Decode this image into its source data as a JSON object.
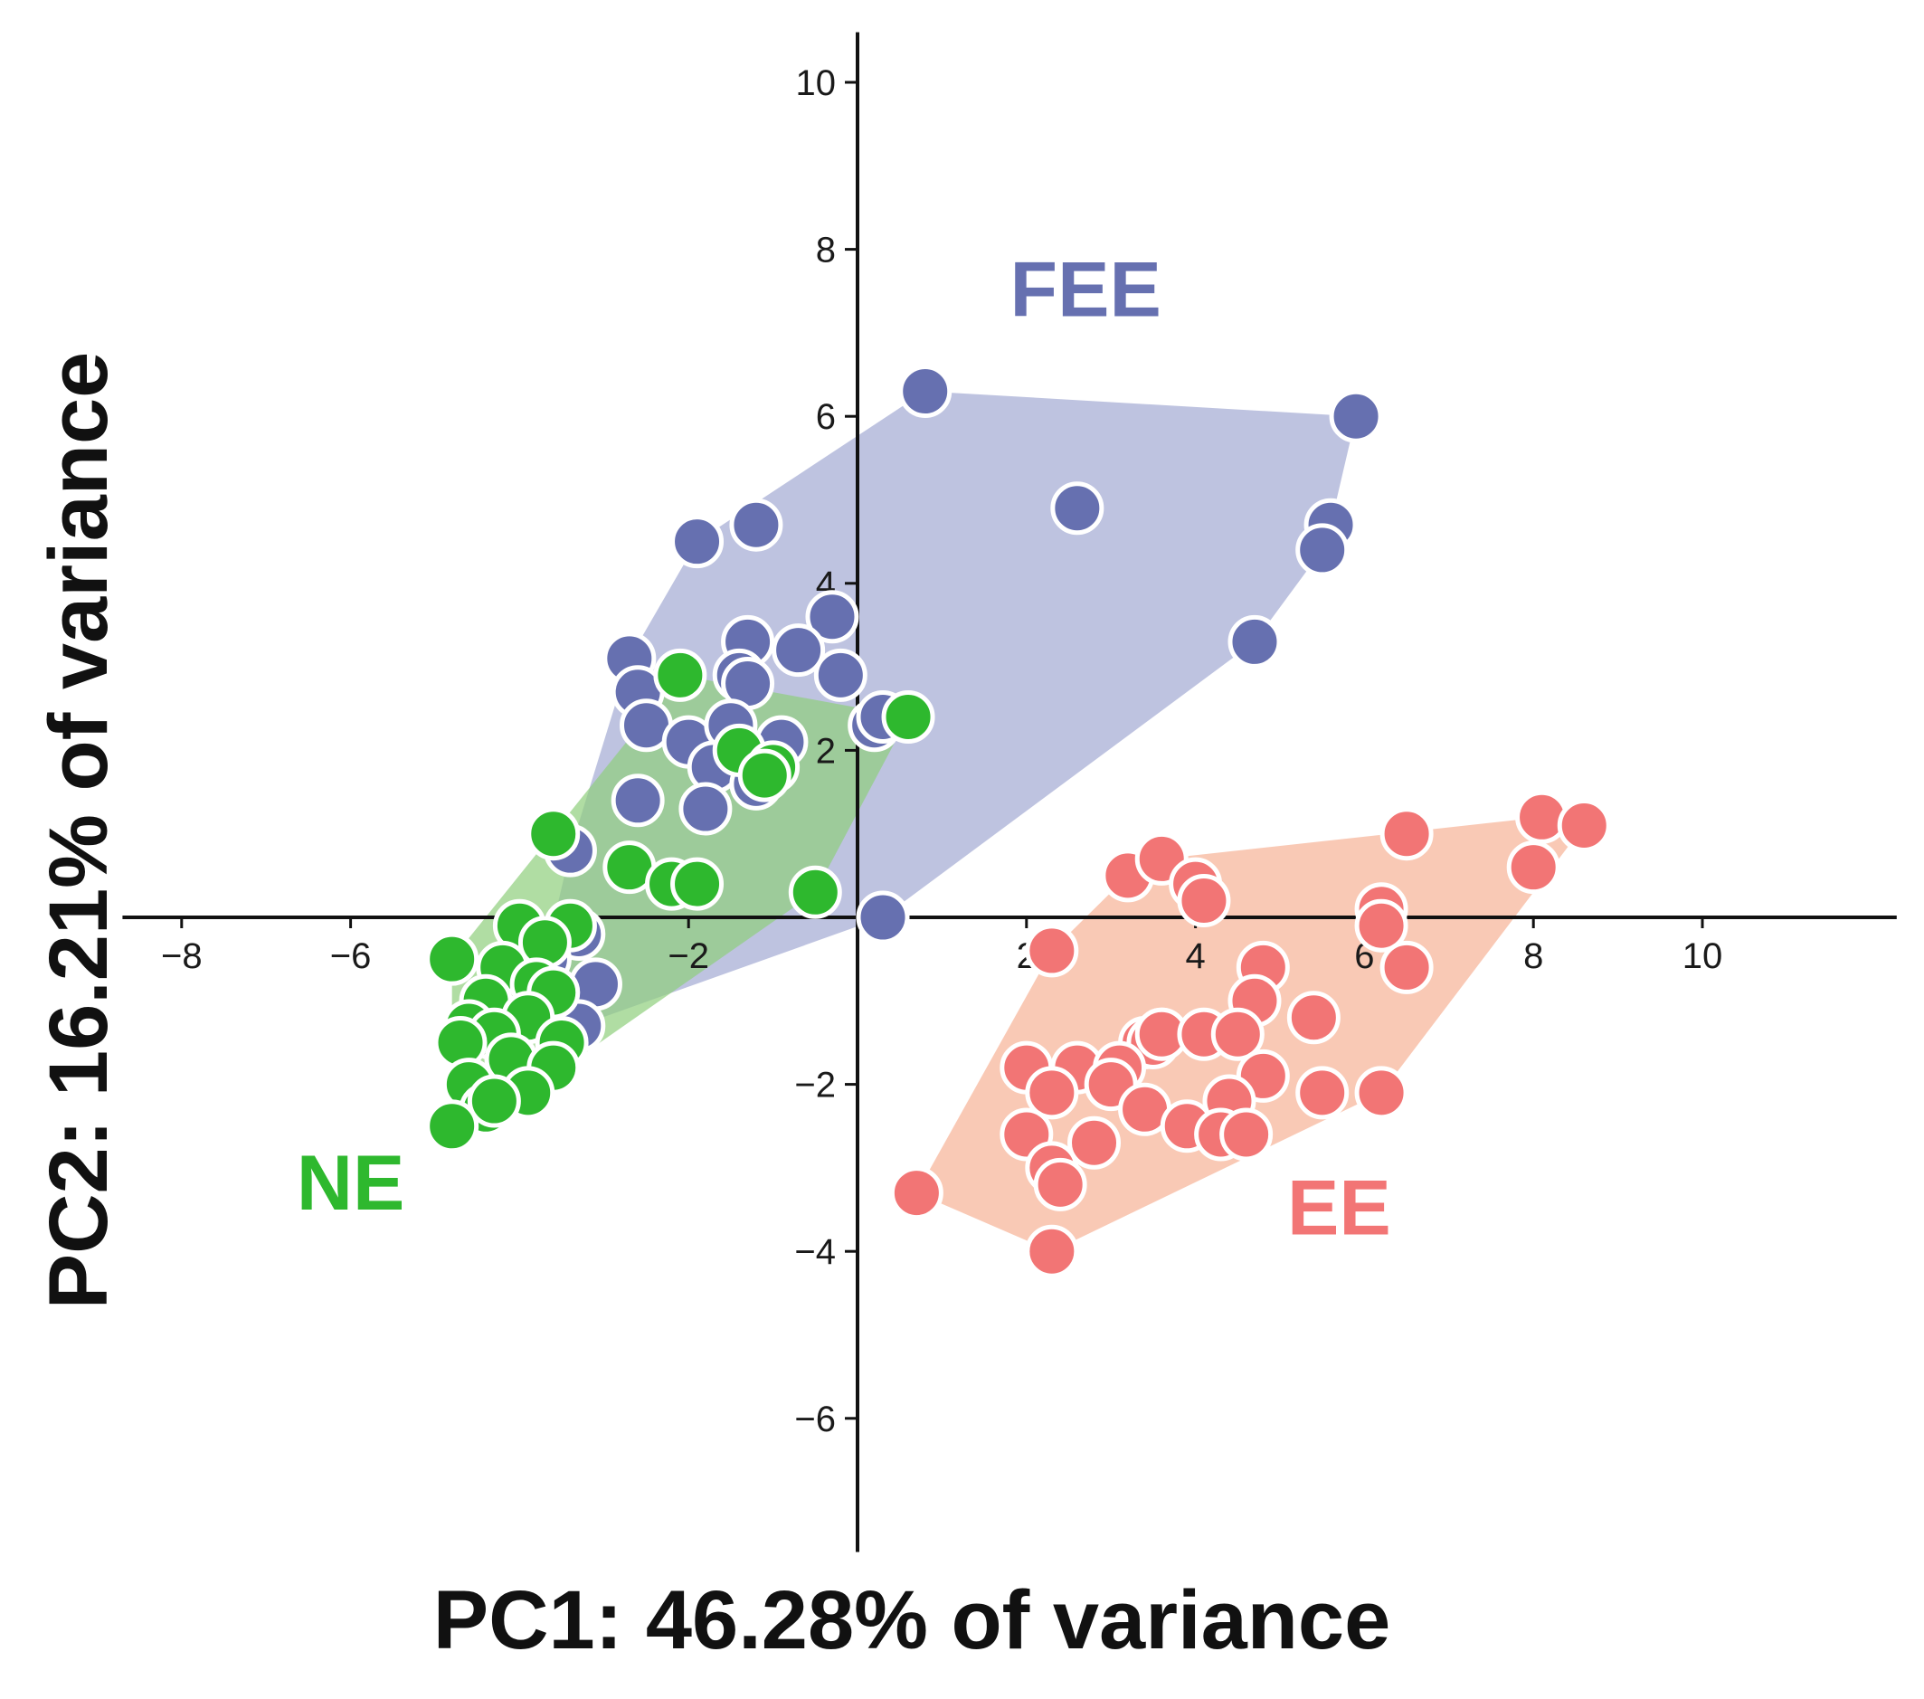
{
  "chart_data": {
    "type": "scatter",
    "title": "",
    "xlabel": "PC1: 46.28% of variance",
    "ylabel": "PC2: 16.21% of variance",
    "xlim": [
      -8.7,
      12.3
    ],
    "ylim": [
      -7.6,
      10.6
    ],
    "xticks": [
      -8,
      -6,
      -4,
      -2,
      2,
      4,
      6,
      8,
      10
    ],
    "yticks": [
      -6,
      -4,
      -2,
      2,
      4,
      6,
      8,
      10
    ],
    "grid": false,
    "legend": "none",
    "series": [
      {
        "name": "FEE",
        "color": "#6670b0",
        "hull_color": "#b3b8db",
        "label_at": [
          2.7,
          7.2
        ],
        "points": [
          [
            0.8,
            6.3
          ],
          [
            5.9,
            6.0
          ],
          [
            2.6,
            4.9
          ],
          [
            5.6,
            4.7
          ],
          [
            5.5,
            4.4
          ],
          [
            4.7,
            3.3
          ],
          [
            -1.9,
            4.5
          ],
          [
            -1.2,
            4.7
          ],
          [
            -0.3,
            3.6
          ],
          [
            -1.3,
            3.3
          ],
          [
            -0.7,
            3.2
          ],
          [
            -2.7,
            3.1
          ],
          [
            -2.6,
            2.7
          ],
          [
            -1.4,
            2.9
          ],
          [
            -1.3,
            2.8
          ],
          [
            -0.2,
            2.9
          ],
          [
            0.2,
            2.3
          ],
          [
            0.3,
            2.4
          ],
          [
            -2.5,
            2.3
          ],
          [
            -2.0,
            2.1
          ],
          [
            -1.5,
            2.3
          ],
          [
            -0.9,
            2.1
          ],
          [
            -1.7,
            1.8
          ],
          [
            -1.2,
            1.6
          ],
          [
            -2.6,
            1.4
          ],
          [
            -1.8,
            1.3
          ],
          [
            -3.4,
            0.8
          ],
          [
            -3.3,
            -0.2
          ],
          [
            -3.7,
            -0.5
          ],
          [
            -3.1,
            -0.8
          ],
          [
            -3.3,
            -1.3
          ],
          [
            0.3,
            0.0
          ]
        ]
      },
      {
        "name": "NE",
        "color": "#2eb82e",
        "hull_color": "#8fcf7c",
        "label_at": [
          -6.0,
          -3.5
        ],
        "points": [
          [
            -2.1,
            2.9
          ],
          [
            0.6,
            2.4
          ],
          [
            -1.4,
            2.0
          ],
          [
            -1.0,
            1.8
          ],
          [
            -1.1,
            1.7
          ],
          [
            -3.6,
            1.0
          ],
          [
            -2.7,
            0.6
          ],
          [
            -2.2,
            0.4
          ],
          [
            -1.9,
            0.4
          ],
          [
            -0.5,
            0.3
          ],
          [
            -4.0,
            -0.1
          ],
          [
            -3.4,
            -0.1
          ],
          [
            -3.7,
            -0.3
          ],
          [
            -4.8,
            -0.5
          ],
          [
            -4.2,
            -0.6
          ],
          [
            -3.8,
            -0.8
          ],
          [
            -3.6,
            -0.9
          ],
          [
            -4.4,
            -1.0
          ],
          [
            -3.9,
            -1.2
          ],
          [
            -4.6,
            -1.3
          ],
          [
            -4.3,
            -1.4
          ],
          [
            -3.5,
            -1.5
          ],
          [
            -4.7,
            -1.5
          ],
          [
            -4.1,
            -1.7
          ],
          [
            -3.6,
            -1.8
          ],
          [
            -4.6,
            -2.0
          ],
          [
            -3.9,
            -2.1
          ],
          [
            -4.4,
            -2.3
          ],
          [
            -4.8,
            -2.5
          ],
          [
            -4.3,
            -2.2
          ]
        ]
      },
      {
        "name": "EE",
        "color": "#f27575",
        "hull_color": "#f8bfa8",
        "label_at": [
          5.7,
          -3.8
        ],
        "points": [
          [
            8.1,
            1.2
          ],
          [
            8.6,
            1.1
          ],
          [
            6.5,
            1.0
          ],
          [
            8.0,
            0.6
          ],
          [
            3.2,
            0.5
          ],
          [
            3.6,
            0.7
          ],
          [
            4.0,
            0.4
          ],
          [
            4.1,
            0.2
          ],
          [
            6.2,
            0.1
          ],
          [
            6.2,
            -0.1
          ],
          [
            2.3,
            -0.4
          ],
          [
            6.5,
            -0.6
          ],
          [
            4.8,
            -0.6
          ],
          [
            4.7,
            -1.0
          ],
          [
            5.4,
            -1.2
          ],
          [
            3.6,
            -1.4
          ],
          [
            3.4,
            -1.5
          ],
          [
            3.5,
            -1.5
          ],
          [
            3.6,
            -1.4
          ],
          [
            4.1,
            -1.4
          ],
          [
            4.5,
            -1.4
          ],
          [
            2.0,
            -1.8
          ],
          [
            2.6,
            -1.8
          ],
          [
            3.1,
            -1.8
          ],
          [
            4.8,
            -1.9
          ],
          [
            2.3,
            -2.1
          ],
          [
            3.0,
            -2.0
          ],
          [
            5.5,
            -2.1
          ],
          [
            6.2,
            -2.1
          ],
          [
            3.4,
            -2.3
          ],
          [
            4.4,
            -2.2
          ],
          [
            3.9,
            -2.5
          ],
          [
            2.0,
            -2.6
          ],
          [
            2.8,
            -2.7
          ],
          [
            4.3,
            -2.6
          ],
          [
            4.6,
            -2.6
          ],
          [
            2.3,
            -3.0
          ],
          [
            2.4,
            -3.2
          ],
          [
            0.7,
            -3.3
          ],
          [
            2.3,
            -4.0
          ]
        ]
      }
    ]
  }
}
